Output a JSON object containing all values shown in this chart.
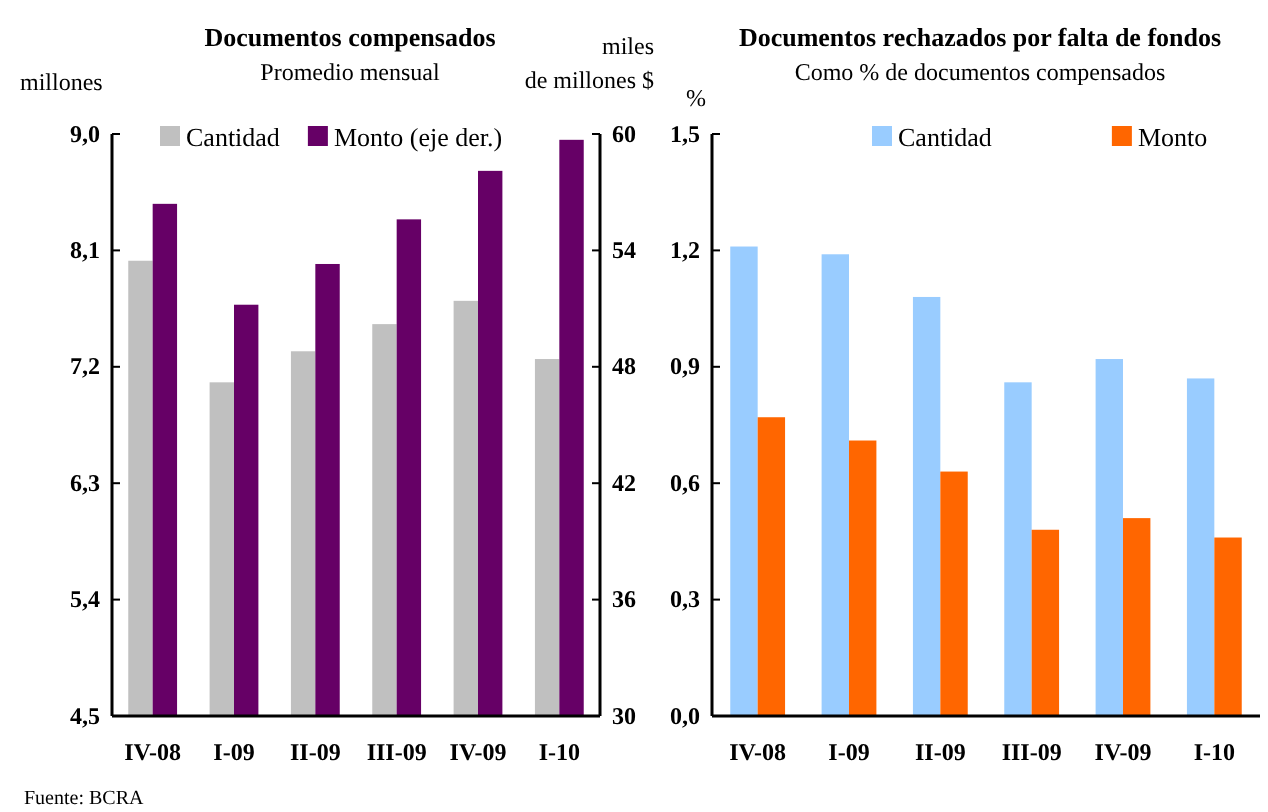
{
  "chart_data": [
    {
      "type": "bar",
      "title": "Documentos compensados",
      "subtitle": "Promedio mensual",
      "ylabel": "millones",
      "y2label": "miles de millones $",
      "categories": [
        "IV-08",
        "I-09",
        "II-09",
        "III-09",
        "IV-09",
        "I-10"
      ],
      "series": [
        {
          "name": "Cantidad",
          "color": "#c0c0c0",
          "values": [
            8.02,
            7.08,
            7.32,
            7.53,
            7.71,
            7.26
          ]
        },
        {
          "name": "Monto (eje der.)",
          "color": "#660066",
          "axis": "y2",
          "values": [
            56.4,
            51.2,
            53.3,
            55.6,
            58.1,
            59.7
          ]
        }
      ],
      "ylim": [
        4.5,
        9.0
      ],
      "yticks": [
        {
          "value": 4.5,
          "label": "4,5"
        },
        {
          "value": 5.4,
          "label": "5,4"
        },
        {
          "value": 6.3,
          "label": "6,3"
        },
        {
          "value": 7.2,
          "label": "7,2"
        },
        {
          "value": 8.1,
          "label": "8,1"
        },
        {
          "value": 9.0,
          "label": "9,0"
        }
      ],
      "y2lim": [
        30,
        60
      ],
      "y2ticks": [
        30,
        36,
        42,
        48,
        54,
        60
      ],
      "legend": "top",
      "grid": false,
      "annotations": [
        "Fuente: BCRA"
      ]
    },
    {
      "type": "bar",
      "title": "Documentos rechazados por falta de fondos",
      "subtitle": "Como % de documentos compensados",
      "ylabel": "%",
      "categories": [
        "IV-08",
        "I-09",
        "II-09",
        "III-09",
        "IV-09",
        "I-10"
      ],
      "series": [
        {
          "name": "Cantidad",
          "color": "#99ccff",
          "values": [
            1.21,
            1.19,
            1.08,
            0.86,
            0.92,
            0.87
          ]
        },
        {
          "name": "Monto",
          "color": "#ff6600",
          "values": [
            0.77,
            0.71,
            0.63,
            0.48,
            0.51,
            0.46
          ]
        }
      ],
      "ylim": [
        0,
        1.5
      ],
      "yticks": [
        {
          "value": 0,
          "label": "0,0"
        },
        {
          "value": 0.3,
          "label": "0,3"
        },
        {
          "value": 0.6,
          "label": "0,6"
        },
        {
          "value": 0.9,
          "label": "0,9"
        },
        {
          "value": 1.2,
          "label": "1,2"
        },
        {
          "value": 1.5,
          "label": "1,5"
        }
      ],
      "legend": "top",
      "grid": false
    }
  ]
}
